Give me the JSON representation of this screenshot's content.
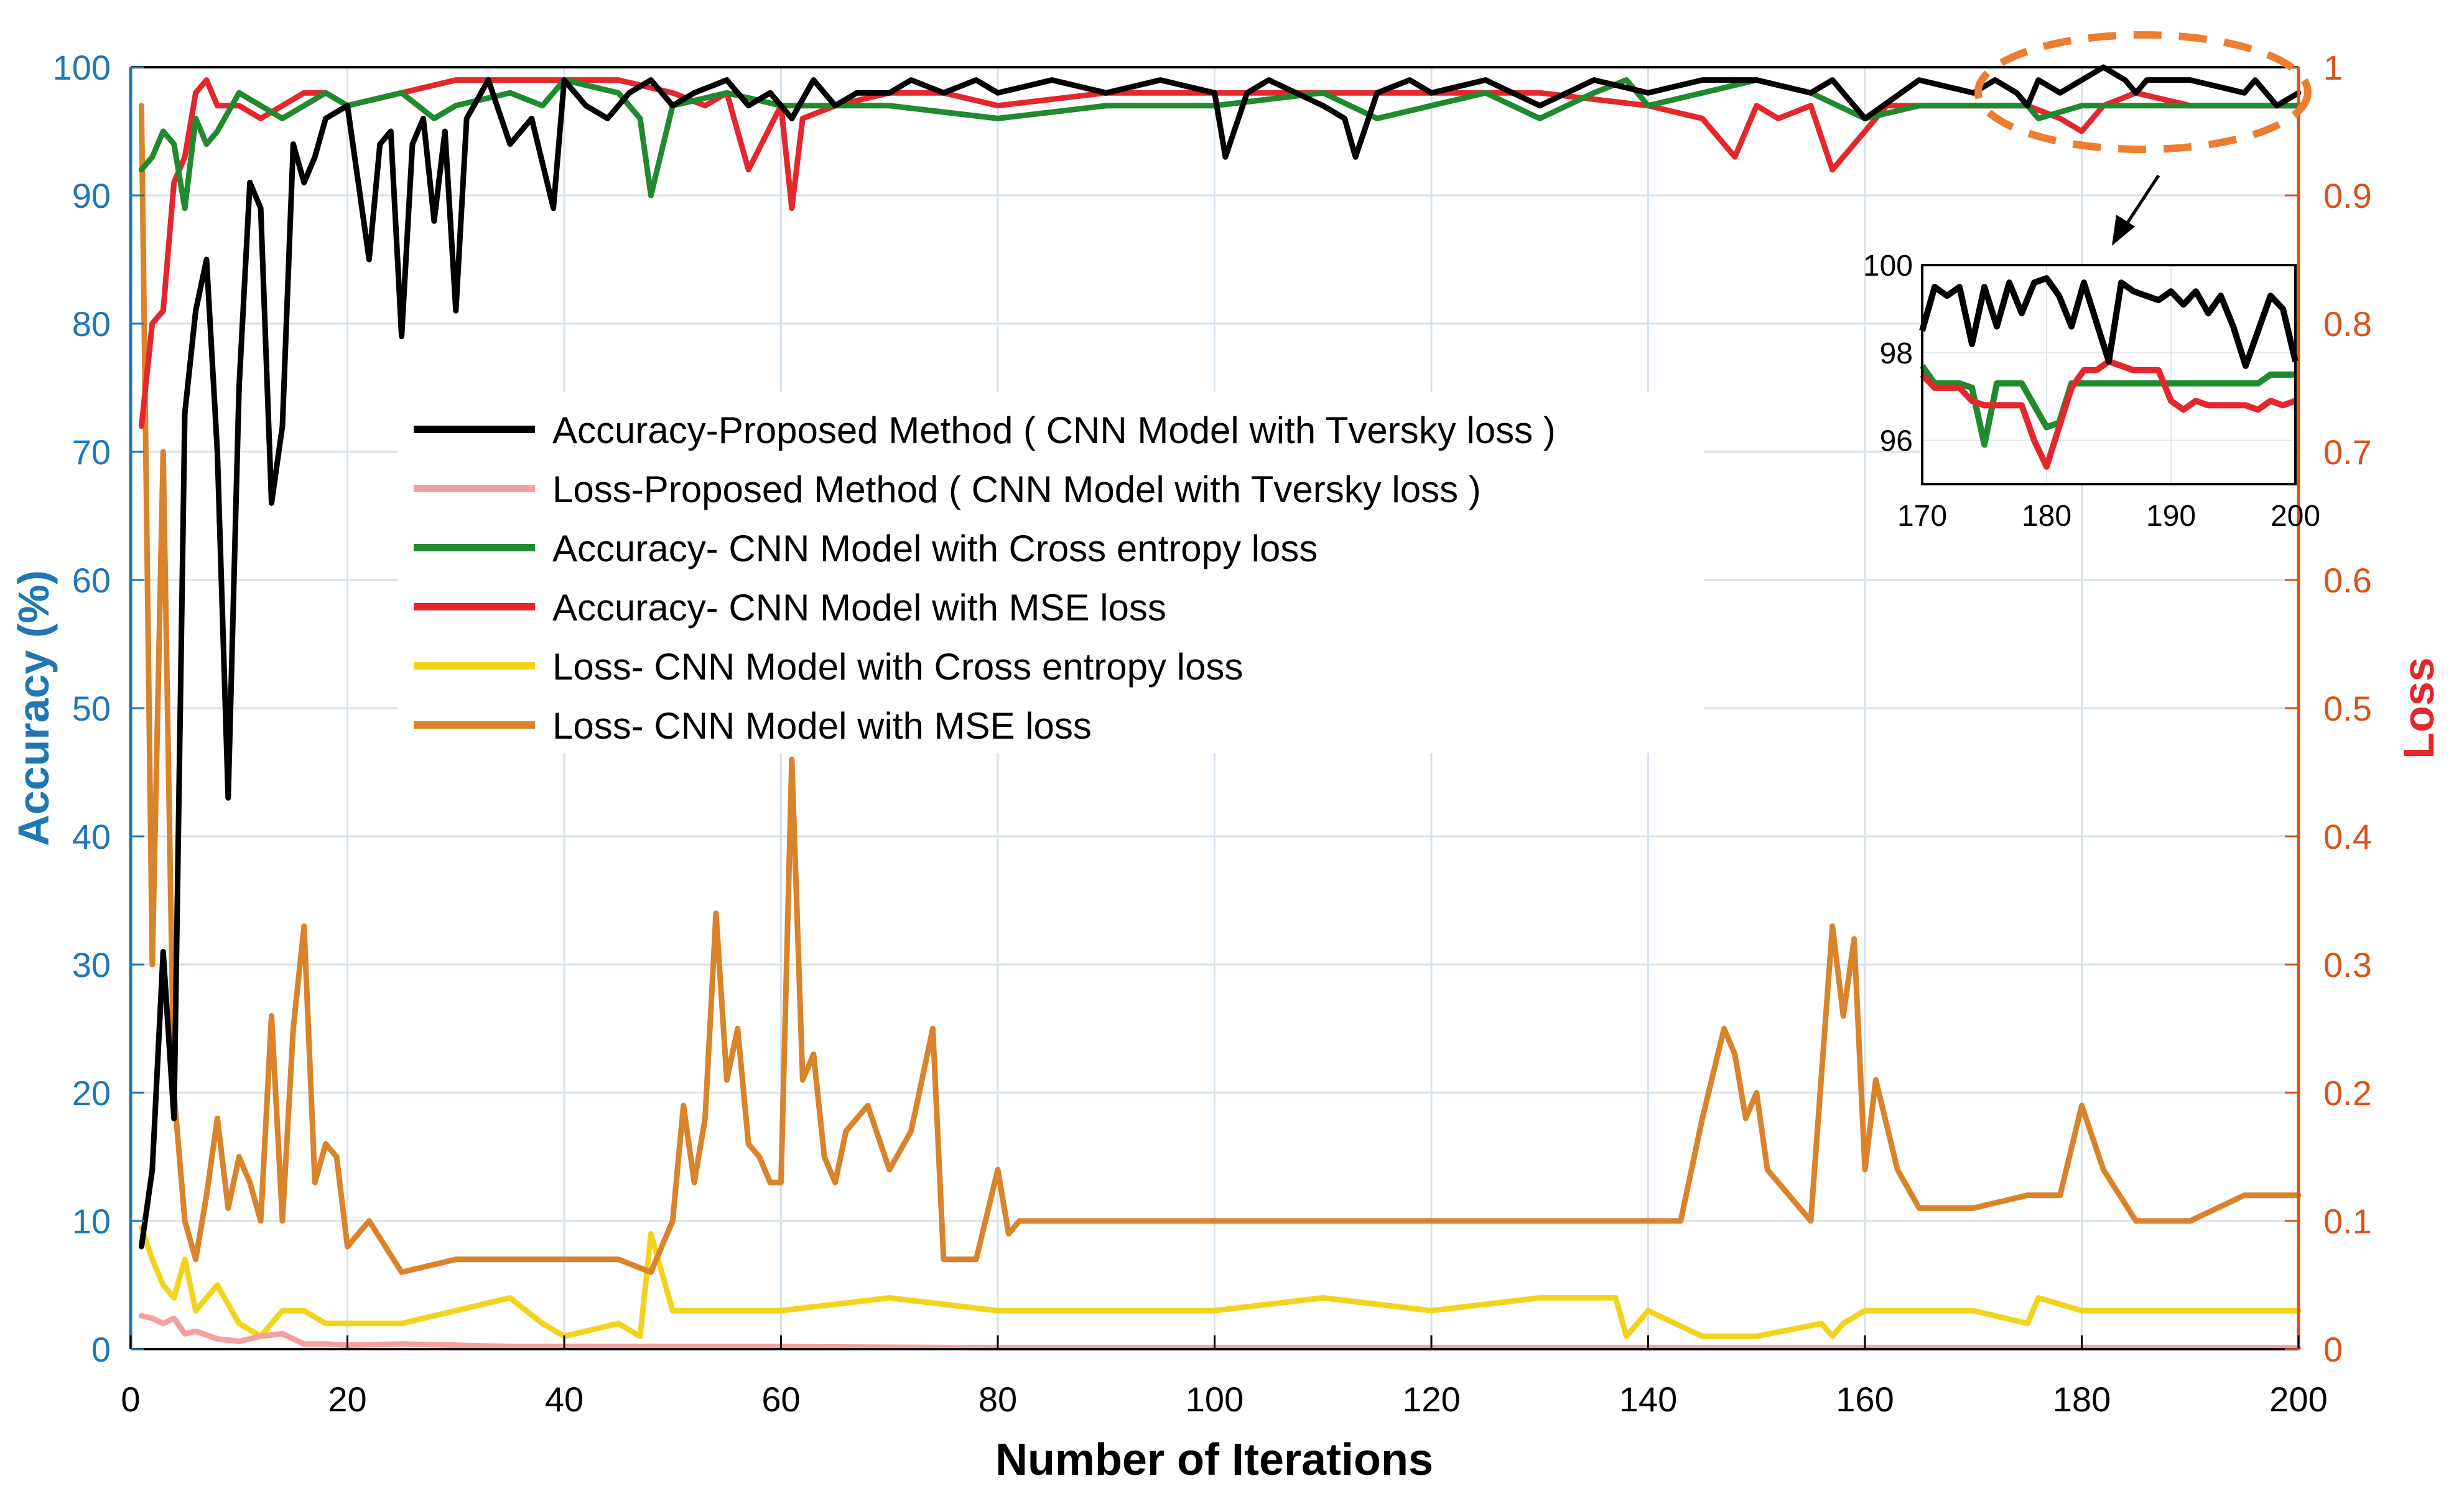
{
  "chart_data": {
    "type": "line",
    "title": "",
    "xlabel": "Number of Iterations",
    "ylabel_left": "Accuracy (%)",
    "ylabel_right": "Loss",
    "xlim": [
      0,
      200
    ],
    "ylim_left": [
      0,
      100
    ],
    "ylim_right": [
      0,
      1
    ],
    "x_ticks": [
      "0",
      "20",
      "40",
      "60",
      "80",
      "100",
      "120",
      "140",
      "160",
      "180",
      "200"
    ],
    "y_ticks_left": [
      "0",
      "10",
      "20",
      "30",
      "40",
      "50",
      "60",
      "70",
      "80",
      "90",
      "100"
    ],
    "y_ticks_right": [
      "0",
      "0.1",
      "0.2",
      "0.3",
      "0.4",
      "0.5",
      "0.6",
      "0.7",
      "0.8",
      "0.9",
      "1"
    ],
    "grid": true,
    "legend": [
      {
        "label": "Accuracy-Proposed Method ( CNN Model with Tversky loss )",
        "color": "#000000"
      },
      {
        "label": "Loss-Proposed Method ( CNN Model with Tversky loss )",
        "color": "#f4a0a0"
      },
      {
        "label": "Accuracy- CNN Model with Cross entropy loss",
        "color": "#1f8a2e"
      },
      {
        "label": "Accuracy- CNN Model with MSE loss",
        "color": "#e3272d"
      },
      {
        "label": "Loss- CNN Model with Cross entropy loss",
        "color": "#f2d41f"
      },
      {
        "label": "Loss- CNN Model with MSE loss",
        "color": "#d9832a"
      }
    ],
    "series": [
      {
        "name": "Accuracy-Proposed Method ( CNN Model with Tversky loss )",
        "axis": "left",
        "color": "#000000",
        "x": [
          1,
          2,
          3,
          4,
          5,
          6,
          7,
          8,
          9,
          10,
          11,
          12,
          13,
          14,
          15,
          16,
          17,
          18,
          20,
          22,
          23,
          24,
          25,
          26,
          27,
          28,
          29,
          30,
          31,
          33,
          35,
          37,
          39,
          40,
          42,
          44,
          46,
          48,
          50,
          52,
          55,
          57,
          59,
          61,
          63,
          65,
          67,
          70,
          72,
          75,
          78,
          80,
          85,
          90,
          95,
          100,
          101,
          103,
          105,
          110,
          112,
          113,
          115,
          118,
          120,
          125,
          130,
          135,
          140,
          145,
          150,
          155,
          157,
          160,
          165,
          170,
          172,
          174,
          175,
          176,
          178,
          180,
          182,
          184,
          185,
          186,
          190,
          195,
          196,
          198,
          200
        ],
        "y": [
          8,
          14,
          31,
          18,
          73,
          81,
          85,
          70,
          43,
          75,
          91,
          89,
          66,
          72,
          94,
          91,
          93,
          96,
          97,
          85,
          94,
          95,
          79,
          94,
          96,
          88,
          95,
          81,
          96,
          99,
          94,
          96,
          89,
          99,
          97,
          96,
          98,
          99,
          97,
          98,
          99,
          97,
          98,
          96,
          99,
          97,
          98,
          98,
          99,
          98,
          99,
          98,
          99,
          98,
          99,
          98,
          93,
          98,
          99,
          97,
          96,
          93,
          98,
          99,
          98,
          99,
          97,
          99,
          98,
          99,
          99,
          98,
          99,
          96,
          99,
          98,
          99,
          98,
          97,
          99,
          98,
          99,
          100,
          99,
          98,
          99,
          99,
          98,
          99,
          97,
          98
        ]
      },
      {
        "name": "Loss-Proposed Method ( CNN Model with Tversky loss )",
        "axis": "right",
        "color": "#f4a0a0",
        "x": [
          1,
          2,
          3,
          4,
          5,
          6,
          8,
          10,
          12,
          14,
          16,
          18,
          20,
          25,
          30,
          35,
          40,
          60,
          80,
          100,
          120,
          140,
          160,
          180,
          200
        ],
        "y": [
          0.026,
          0.024,
          0.02,
          0.024,
          0.012,
          0.014,
          0.008,
          0.006,
          0.01,
          0.012,
          0.004,
          0.004,
          0.003,
          0.004,
          0.003,
          0.002,
          0.002,
          0.002,
          0.001,
          0.001,
          0.001,
          0.001,
          0.001,
          0.001,
          0.001
        ]
      },
      {
        "name": "Accuracy- CNN Model with Cross entropy loss",
        "axis": "left",
        "color": "#1f8a2e",
        "x": [
          1,
          2,
          3,
          4,
          5,
          6,
          7,
          8,
          10,
          12,
          14,
          16,
          18,
          20,
          25,
          28,
          30,
          35,
          38,
          40,
          45,
          47,
          48,
          50,
          55,
          60,
          70,
          80,
          90,
          100,
          110,
          115,
          120,
          125,
          130,
          135,
          138,
          140,
          145,
          150,
          155,
          160,
          165,
          170,
          175,
          176,
          180,
          185,
          190,
          195,
          200
        ],
        "y": [
          92,
          93,
          95,
          94,
          89,
          96,
          94,
          95,
          98,
          97,
          96,
          97,
          98,
          97,
          98,
          96,
          97,
          98,
          97,
          99,
          98,
          96,
          90,
          97,
          98,
          97,
          97,
          96,
          97,
          97,
          98,
          96,
          97,
          98,
          96,
          98,
          99,
          97,
          98,
          99,
          98,
          96,
          97,
          97,
          97,
          96,
          97,
          97,
          97,
          97,
          97
        ]
      },
      {
        "name": "Accuracy- CNN Model with MSE loss",
        "axis": "right",
        "color": "#e3272d",
        "x": [
          1,
          2,
          3,
          4,
          5,
          6,
          7,
          8,
          10,
          12,
          14,
          16,
          18,
          20,
          25,
          30,
          35,
          40,
          45,
          50,
          53,
          55,
          57,
          60,
          61,
          62,
          65,
          70,
          75,
          80,
          90,
          100,
          110,
          120,
          130,
          140,
          145,
          148,
          150,
          152,
          155,
          157,
          158,
          160,
          162,
          165,
          170,
          175,
          178,
          180,
          182,
          185,
          190,
          195,
          200
        ],
        "y": [
          0.72,
          0.8,
          0.81,
          0.91,
          0.93,
          0.98,
          0.99,
          0.97,
          0.97,
          0.96,
          0.97,
          0.98,
          0.98,
          0.97,
          0.98,
          0.99,
          0.99,
          0.99,
          0.99,
          0.98,
          0.97,
          0.98,
          0.92,
          0.97,
          0.89,
          0.96,
          0.97,
          0.98,
          0.98,
          0.97,
          0.98,
          0.98,
          0.98,
          0.98,
          0.98,
          0.97,
          0.96,
          0.93,
          0.97,
          0.96,
          0.97,
          0.92,
          0.93,
          0.95,
          0.97,
          0.97,
          0.97,
          0.97,
          0.96,
          0.95,
          0.97,
          0.98,
          0.97,
          0.97,
          0.97
        ]
      },
      {
        "name": "Loss- CNN Model with Cross entropy loss",
        "axis": "right",
        "color": "#f2d41f",
        "x": [
          1,
          2,
          3,
          4,
          5,
          6,
          7,
          8,
          10,
          12,
          14,
          16,
          18,
          20,
          25,
          30,
          35,
          38,
          40,
          45,
          47,
          48,
          50,
          55,
          60,
          70,
          80,
          90,
          100,
          110,
          120,
          130,
          137,
          138,
          140,
          145,
          150,
          156,
          157,
          158,
          160,
          170,
          175,
          176,
          180,
          190,
          200
        ],
        "y": [
          0.095,
          0.07,
          0.05,
          0.04,
          0.07,
          0.03,
          0.04,
          0.05,
          0.02,
          0.01,
          0.03,
          0.03,
          0.02,
          0.02,
          0.02,
          0.03,
          0.04,
          0.02,
          0.01,
          0.02,
          0.01,
          0.09,
          0.03,
          0.03,
          0.03,
          0.04,
          0.03,
          0.03,
          0.03,
          0.04,
          0.03,
          0.04,
          0.04,
          0.01,
          0.03,
          0.01,
          0.01,
          0.02,
          0.01,
          0.02,
          0.03,
          0.03,
          0.02,
          0.04,
          0.03,
          0.03,
          0.03
        ]
      },
      {
        "name": "Loss- CNN Model with MSE loss",
        "axis": "right",
        "color": "#d9832a",
        "x": [
          1,
          2,
          3,
          4,
          5,
          6,
          7,
          8,
          9,
          10,
          11,
          12,
          13,
          14,
          15,
          16,
          17,
          18,
          19,
          20,
          22,
          25,
          30,
          35,
          40,
          45,
          48,
          50,
          51,
          52,
          53,
          54,
          55,
          56,
          57,
          58,
          59,
          60,
          61,
          62,
          63,
          64,
          65,
          66,
          67,
          68,
          70,
          72,
          74,
          75,
          78,
          80,
          81,
          82,
          85,
          90,
          100,
          110,
          120,
          130,
          140,
          143,
          145,
          147,
          148,
          149,
          150,
          151,
          152,
          155,
          157,
          158,
          159,
          160,
          161,
          163,
          165,
          168,
          170,
          175,
          178,
          180,
          182,
          185,
          188,
          190,
          195,
          200
        ],
        "y": [
          0.97,
          0.3,
          0.7,
          0.2,
          0.1,
          0.07,
          0.12,
          0.18,
          0.11,
          0.15,
          0.13,
          0.1,
          0.26,
          0.1,
          0.25,
          0.33,
          0.13,
          0.16,
          0.15,
          0.08,
          0.1,
          0.06,
          0.07,
          0.07,
          0.07,
          0.07,
          0.06,
          0.1,
          0.19,
          0.13,
          0.18,
          0.34,
          0.21,
          0.25,
          0.16,
          0.15,
          0.13,
          0.13,
          0.46,
          0.21,
          0.23,
          0.15,
          0.13,
          0.17,
          0.18,
          0.19,
          0.14,
          0.17,
          0.25,
          0.07,
          0.07,
          0.14,
          0.09,
          0.1,
          0.1,
          0.1,
          0.1,
          0.1,
          0.1,
          0.1,
          0.1,
          0.1,
          0.18,
          0.25,
          0.23,
          0.18,
          0.2,
          0.14,
          0.13,
          0.1,
          0.33,
          0.26,
          0.32,
          0.14,
          0.21,
          0.14,
          0.11,
          0.11,
          0.11,
          0.12,
          0.12,
          0.19,
          0.14,
          0.1,
          0.1,
          0.1,
          0.12,
          0.12
        ]
      }
    ],
    "annotations": {
      "right_axis_callout": "1",
      "zoom_region": {
        "xlim": [
          170,
          200
        ],
        "ylim": [
          95,
          100
        ]
      }
    },
    "inset": {
      "type": "line",
      "xlim": [
        170,
        200
      ],
      "ylim": [
        95,
        100
      ],
      "x_ticks": [
        "170",
        "180",
        "190",
        "200"
      ],
      "y_ticks": [
        "96",
        "98",
        "100"
      ],
      "series": [
        {
          "name": "Accuracy-Proposed Method ( CNN Model with Tversky loss )",
          "color": "#000000",
          "x": [
            170,
            171,
            172,
            173,
            174,
            175,
            176,
            177,
            178,
            179,
            180,
            181,
            182,
            183,
            184,
            185,
            186,
            187,
            188,
            189,
            190,
            191,
            192,
            193,
            194,
            195,
            196,
            197,
            198,
            199,
            200
          ],
          "y": [
            98.5,
            99.5,
            99.3,
            99.5,
            98.2,
            99.5,
            98.6,
            99.6,
            98.9,
            99.6,
            99.7,
            99.3,
            98.6,
            99.6,
            98.7,
            97.8,
            99.6,
            99.4,
            99.3,
            99.2,
            99.4,
            99.1,
            99.4,
            98.9,
            99.3,
            98.6,
            97.7,
            98.5,
            99.3,
            99.0,
            97.8
          ]
        },
        {
          "name": "Accuracy- CNN Model with Cross entropy loss",
          "color": "#1f8a2e",
          "x": [
            170,
            171,
            173,
            174,
            175,
            176,
            177,
            178,
            179,
            180,
            181,
            182,
            183,
            184,
            185,
            186,
            187,
            188,
            189,
            190,
            195,
            197,
            198,
            199,
            200
          ],
          "y": [
            97.7,
            97.3,
            97.3,
            97.2,
            95.9,
            97.3,
            97.3,
            97.3,
            96.8,
            96.3,
            96.4,
            97.3,
            97.3,
            97.3,
            97.3,
            97.3,
            97.3,
            97.3,
            97.3,
            97.3,
            97.3,
            97.3,
            97.5,
            97.5,
            97.5
          ]
        },
        {
          "name": "Accuracy- CNN Model with MSE loss",
          "color": "#e3272d",
          "x": [
            170,
            171,
            172,
            173,
            174,
            175,
            176,
            177,
            178,
            179,
            180,
            181,
            182,
            183,
            184,
            185,
            186,
            187,
            188,
            189,
            190,
            191,
            192,
            193,
            194,
            195,
            196,
            197,
            198,
            199,
            200
          ],
          "y": [
            97.5,
            97.2,
            97.2,
            97.2,
            96.9,
            96.8,
            96.8,
            96.8,
            96.8,
            96.0,
            95.4,
            96.3,
            97.2,
            97.6,
            97.6,
            97.8,
            97.7,
            97.6,
            97.6,
            97.6,
            96.9,
            96.7,
            96.9,
            96.8,
            96.8,
            96.8,
            96.8,
            96.7,
            96.9,
            96.8,
            96.9
          ]
        }
      ]
    }
  }
}
